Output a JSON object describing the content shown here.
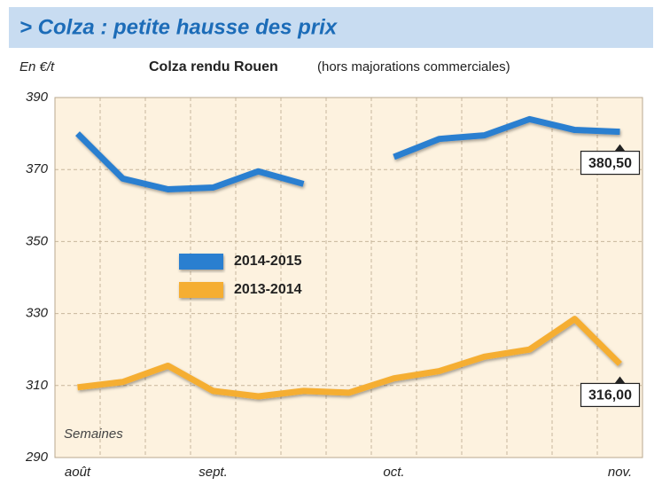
{
  "chart_data": {
    "type": "line",
    "title": "> Colza : petite hausse des prix",
    "subtitle": "Colza rendu Rouen",
    "subtitle_note": "(hors majorations commerciales)",
    "y_label": "En €/t",
    "x_label": "Semaines",
    "categories": [
      "août",
      null,
      null,
      "sept.",
      null,
      null,
      null,
      "oct.",
      null,
      null,
      null,
      null,
      "nov."
    ],
    "series": [
      {
        "name": "2014-2015",
        "color": "#2b7fd0",
        "values": [
          380,
          367.5,
          364.5,
          365,
          369.5,
          366,
          null,
          373.5,
          378.5,
          379.5,
          384,
          381,
          380.5
        ],
        "value_labels": [
          null,
          null,
          null,
          null,
          null,
          null,
          null,
          null,
          null,
          null,
          null,
          null,
          "380,50"
        ]
      },
      {
        "name": "2013-2014",
        "color": "#f5ae32",
        "values": [
          309.5,
          311,
          315.5,
          308.5,
          307,
          308.5,
          308,
          312,
          314,
          318,
          320,
          328.5,
          316
        ],
        "value_labels": [
          null,
          null,
          null,
          null,
          null,
          null,
          null,
          null,
          null,
          null,
          null,
          null,
          "316,00"
        ]
      }
    ],
    "ylim": [
      290,
      390
    ],
    "yticks": [
      290,
      310,
      330,
      350,
      370,
      390
    ],
    "grid": true
  }
}
